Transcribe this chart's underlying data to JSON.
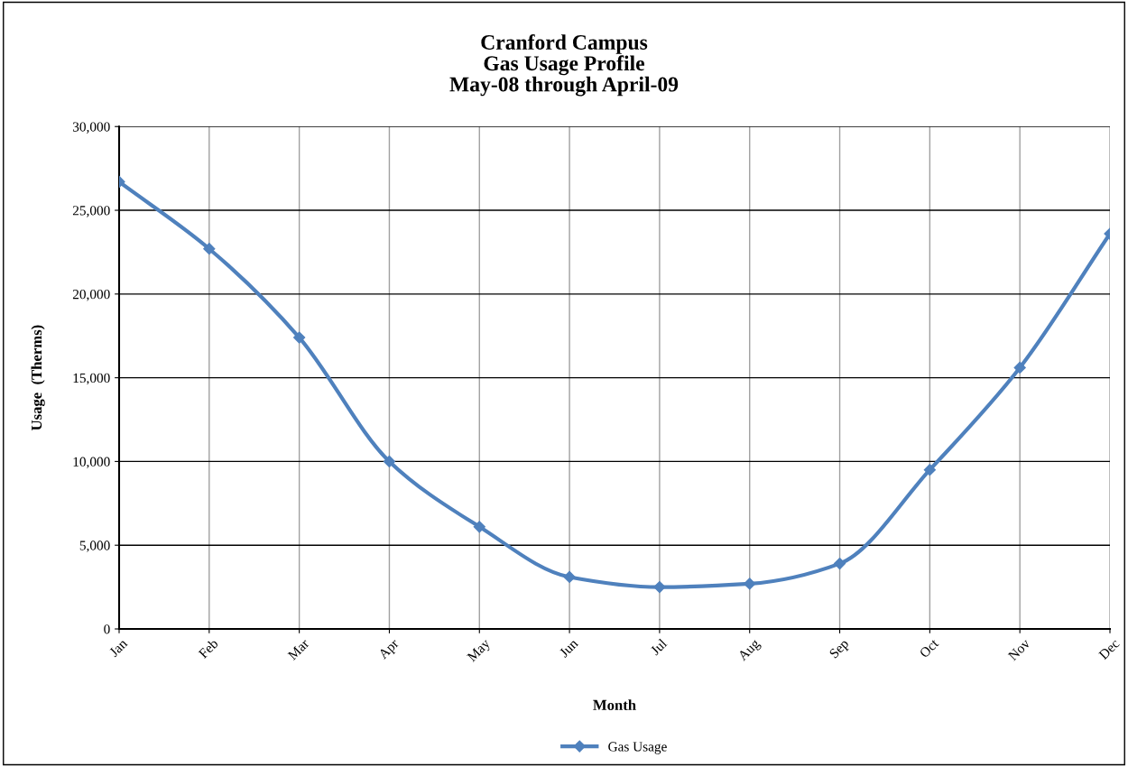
{
  "chart_data": {
    "type": "line",
    "title": "Cranford Campus\nGas Usage Profile\nMay-08 through April-09",
    "xlabel": "Month",
    "ylabel": "Usage  (Therms)",
    "categories": [
      "Jan",
      "Feb",
      "Mar",
      "Apr",
      "May",
      "Jun",
      "Jul",
      "Aug",
      "Sep",
      "Oct",
      "Nov",
      "Dec"
    ],
    "series": [
      {
        "name": "Gas Usage",
        "color": "#4f81bd",
        "values": [
          26700,
          22700,
          17400,
          10000,
          6100,
          3100,
          2500,
          2700,
          3900,
          9500,
          15600,
          23600
        ]
      }
    ],
    "ylim": [
      0,
      30000
    ],
    "yticks": [
      {
        "value": 0,
        "label": "0"
      },
      {
        "value": 5000,
        "label": "5,000"
      },
      {
        "value": 10000,
        "label": "10,000"
      },
      {
        "value": 15000,
        "label": "15,000"
      },
      {
        "value": 20000,
        "label": "20,000"
      },
      {
        "value": 25000,
        "label": "25,000"
      },
      {
        "value": 30000,
        "label": "30,000"
      }
    ],
    "grid": true,
    "legend": "bottom",
    "marker": "diamond",
    "line_style": "solid"
  }
}
